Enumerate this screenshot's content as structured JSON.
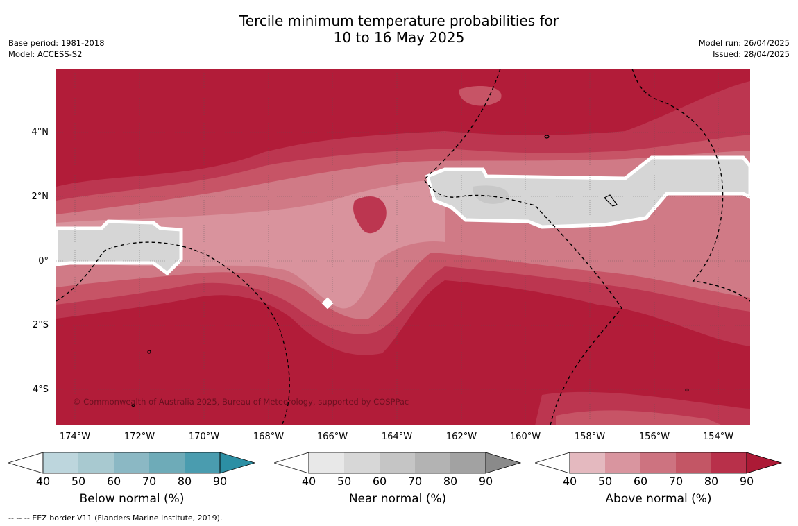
{
  "title_line1": "Tercile minimum temperature probabilities for",
  "title_line2": "10 to 16 May 2025",
  "base_period": "Base period: 1981-2018",
  "model": "Model: ACCESS-S2",
  "model_run": "Model run: 26/04/2025",
  "issued": "Issued: 28/04/2025",
  "credit": "© Commonwealth of Australia 2025, Bureau of Meteorology, supported by COSPPac",
  "footer": "--  --  -- EEZ border V11 (Flanders Marine Institute, 2019).",
  "lat_labels": [
    "4°N",
    "2°N",
    "0°",
    "2°S",
    "4°S"
  ],
  "lon_labels": [
    "174°W",
    "172°W",
    "170°W",
    "168°W",
    "166°W",
    "164°W",
    "162°W",
    "160°W",
    "158°W",
    "156°W",
    "154°W"
  ],
  "colorbars": [
    {
      "title": "Below normal (%)",
      "ticks": [
        "40",
        "50",
        "60",
        "70",
        "80",
        "90"
      ],
      "colors": [
        "#bdd6dd",
        "#a8c9d0",
        "#8bb8c4",
        "#6eabb8",
        "#4a9caf",
        "#2c8fa4"
      ]
    },
    {
      "title": "Near normal (%)",
      "ticks": [
        "40",
        "50",
        "60",
        "70",
        "80",
        "90"
      ],
      "colors": [
        "#e8e8e8",
        "#d7d7d7",
        "#c5c5c5",
        "#b3b3b3",
        "#a2a2a2",
        "#8a8a8a"
      ]
    },
    {
      "title": "Above normal (%)",
      "ticks": [
        "40",
        "50",
        "60",
        "70",
        "80",
        "90"
      ],
      "colors": [
        "#e4b9bf",
        "#d9959f",
        "#cd7380",
        "#c35665",
        "#b8304a",
        "#ac1a36"
      ]
    }
  ],
  "map_colors": {
    "darkest": "#b21c39",
    "dark": "#bc3650",
    "mid": "#c75466",
    "light": "#d07a86",
    "lighter": "#d9939d",
    "near": "#d6d6d6"
  }
}
